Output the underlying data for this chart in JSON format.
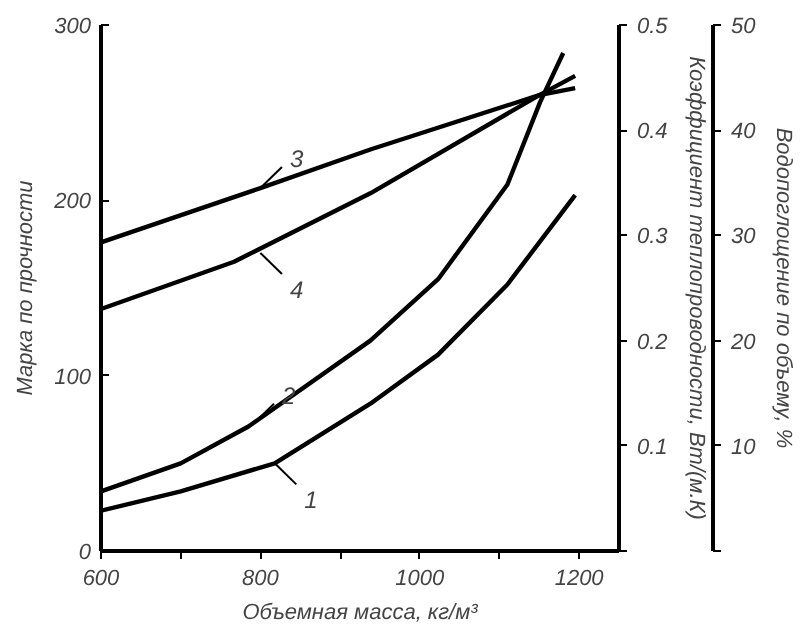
{
  "chart_data": {
    "type": "line",
    "xlabel": "Объемная масса, кг/м³",
    "ylabel": "Марка по прочности",
    "y2label": "Коэффициент теплопроводности, Вт/(м.К)",
    "y3label": "Водопоглощение по объему, %",
    "series": [
      {
        "color": "#000000",
        "x": [
          600,
          700,
          818,
          938,
          1023,
          1110,
          1195
        ],
        "values": [
          23,
          34,
          50,
          84,
          112,
          152,
          203
        ]
      },
      {
        "color": "#000000",
        "x": [
          600,
          700,
          785,
          938,
          1023,
          1110,
          1151,
          1180
        ],
        "values": [
          34,
          50,
          71,
          120,
          155,
          209,
          256,
          284
        ]
      },
      {
        "color": "#000000",
        "x": [
          600,
          800,
          938,
          1150,
          1195
        ],
        "values": [
          176,
          207,
          229,
          260,
          264
        ]
      },
      {
        "color": "#000000",
        "x": [
          600,
          767,
          938,
          1150,
          1195
        ],
        "values": [
          138,
          165,
          204,
          260,
          271
        ]
      }
    ],
    "annotations": [
      {
        "text": "3",
        "x": 800,
        "y": 207
      },
      {
        "text": "4",
        "x": 800,
        "y": 170
      },
      {
        "text": "2",
        "x": 790,
        "y": 72
      },
      {
        "text": "1",
        "x": 818,
        "y": 50
      }
    ],
    "xlim": [
      600,
      1250
    ],
    "xticks": [
      600,
      {
        "value": 700,
        "label": null
      },
      800,
      {
        "value": 900,
        "label": null
      },
      1000,
      {
        "value": 1100,
        "label": null
      },
      1200
    ],
    "ylim": [
      0,
      300
    ],
    "yticks": [
      0,
      100,
      200,
      300
    ],
    "y2lim": [
      0,
      0.5
    ],
    "y2ticks": [
      {
        "value": 0,
        "label": null
      },
      0.1,
      0.2,
      0.3,
      0.4,
      0.5
    ],
    "y3lim": [
      0,
      50
    ],
    "y3ticks": [
      {
        "value": 0,
        "label": null
      },
      10,
      20,
      30,
      40,
      50
    ],
    "grid": false,
    "line_style": "solid",
    "marker": "none"
  }
}
